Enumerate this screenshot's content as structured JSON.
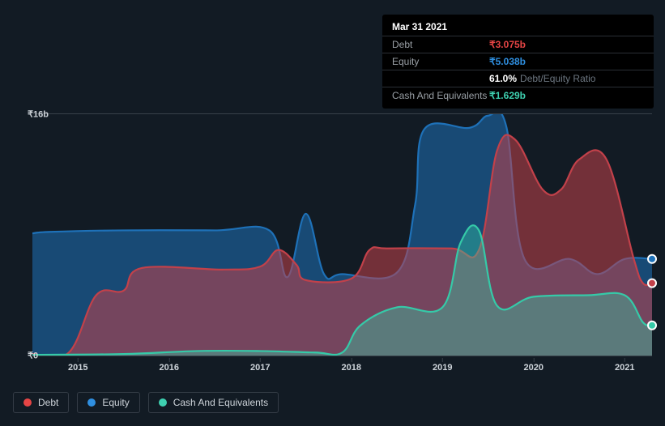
{
  "chart": {
    "type": "area",
    "background_color": "#121b24",
    "grid_color": "#384049",
    "text_color": "#ced4da",
    "x_years": [
      2015,
      2016,
      2017,
      2018,
      2019,
      2020,
      2021
    ],
    "x_range": [
      2014.5,
      2021.3
    ],
    "y_range": [
      0,
      16
    ],
    "y_ticks": [
      {
        "v": 0,
        "label": "₹0"
      },
      {
        "v": 16,
        "label": "₹16b"
      }
    ],
    "axis_fontsize": 11,
    "series": [
      {
        "name": "Equity",
        "color": "#1e71b8",
        "fill_opacity": 0.55,
        "line_width": 2.2,
        "points": [
          [
            2014.5,
            8.1
          ],
          [
            2014.7,
            8.2
          ],
          [
            2015.5,
            8.3
          ],
          [
            2016.5,
            8.3
          ],
          [
            2017.1,
            8.3
          ],
          [
            2017.3,
            5.2
          ],
          [
            2017.5,
            9.4
          ],
          [
            2017.7,
            5.4
          ],
          [
            2017.9,
            5.4
          ],
          [
            2018.5,
            5.5
          ],
          [
            2018.7,
            10.0
          ],
          [
            2018.8,
            15.0
          ],
          [
            2019.3,
            15.1
          ],
          [
            2019.5,
            15.9
          ],
          [
            2019.7,
            15.2
          ],
          [
            2019.9,
            6.4
          ],
          [
            2020.4,
            6.4
          ],
          [
            2020.7,
            5.4
          ],
          [
            2021.0,
            6.4
          ],
          [
            2021.3,
            6.4
          ]
        ]
      },
      {
        "name": "Debt",
        "color": "#c2414a",
        "fill_opacity": 0.55,
        "line_width": 2.2,
        "points": [
          [
            2014.5,
            0.1
          ],
          [
            2014.9,
            0.2
          ],
          [
            2015.2,
            4.0
          ],
          [
            2015.5,
            4.3
          ],
          [
            2015.7,
            5.8
          ],
          [
            2016.6,
            5.7
          ],
          [
            2017.0,
            5.9
          ],
          [
            2017.2,
            7.0
          ],
          [
            2017.4,
            6.0
          ],
          [
            2017.5,
            5.0
          ],
          [
            2018.0,
            5.1
          ],
          [
            2018.2,
            7.0
          ],
          [
            2018.4,
            7.1
          ],
          [
            2019.1,
            7.1
          ],
          [
            2019.4,
            7.0
          ],
          [
            2019.6,
            13.6
          ],
          [
            2019.8,
            14.3
          ],
          [
            2020.1,
            11.0
          ],
          [
            2020.3,
            11.0
          ],
          [
            2020.5,
            13.0
          ],
          [
            2020.8,
            13.0
          ],
          [
            2021.1,
            6.4
          ],
          [
            2021.2,
            4.8
          ],
          [
            2021.3,
            4.8
          ]
        ]
      },
      {
        "name": "Cash And Equivalents",
        "color": "#35caa8",
        "fill_opacity": 0.4,
        "line_width": 2.2,
        "points": [
          [
            2014.5,
            0.05
          ],
          [
            2015.5,
            0.1
          ],
          [
            2016.3,
            0.3
          ],
          [
            2017.0,
            0.3
          ],
          [
            2017.6,
            0.2
          ],
          [
            2017.9,
            0.2
          ],
          [
            2018.1,
            2.0
          ],
          [
            2018.5,
            3.2
          ],
          [
            2019.0,
            3.2
          ],
          [
            2019.2,
            7.5
          ],
          [
            2019.4,
            8.3
          ],
          [
            2019.6,
            3.3
          ],
          [
            2020.0,
            3.9
          ],
          [
            2020.6,
            4.0
          ],
          [
            2021.0,
            4.0
          ],
          [
            2021.2,
            2.2
          ],
          [
            2021.3,
            2.0
          ]
        ]
      }
    ],
    "end_markers": [
      {
        "series": "Equity",
        "x": 2021.3,
        "y": 6.4,
        "color": "#1e71b8"
      },
      {
        "series": "Debt",
        "x": 2021.3,
        "y": 4.8,
        "color": "#c2414a"
      },
      {
        "series": "Cash And Equivalents",
        "x": 2021.3,
        "y": 2.0,
        "color": "#35caa8"
      }
    ]
  },
  "tooltip": {
    "date": "Mar 31 2021",
    "rows": [
      {
        "label": "Debt",
        "value": "₹3.075b",
        "cls": "val-debt"
      },
      {
        "label": "Equity",
        "value": "₹5.038b",
        "cls": "val-equity"
      },
      {
        "label": "",
        "value": "61.0%",
        "suffix": "Debt/Equity Ratio",
        "cls": ""
      },
      {
        "label": "Cash And Equivalents",
        "value": "₹1.629b",
        "cls": "val-cash"
      }
    ]
  },
  "legend": [
    {
      "label": "Debt",
      "color": "#e64545"
    },
    {
      "label": "Equity",
      "color": "#2f8fe0"
    },
    {
      "label": "Cash And Equivalents",
      "color": "#3ed0b0"
    }
  ]
}
